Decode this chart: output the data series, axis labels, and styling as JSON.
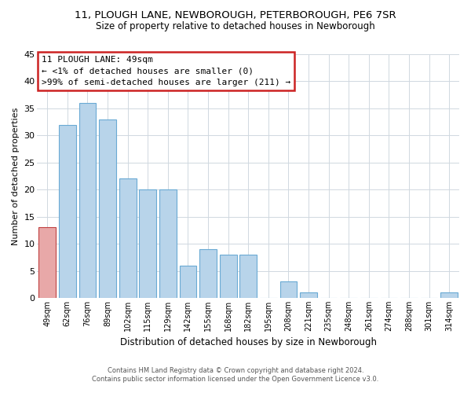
{
  "title": "11, PLOUGH LANE, NEWBOROUGH, PETERBOROUGH, PE6 7SR",
  "subtitle": "Size of property relative to detached houses in Newborough",
  "xlabel": "Distribution of detached houses by size in Newborough",
  "ylabel": "Number of detached properties",
  "bar_color": "#b8d4ea",
  "bar_edge_color": "#6aaad4",
  "categories": [
    "49sqm",
    "62sqm",
    "76sqm",
    "89sqm",
    "102sqm",
    "115sqm",
    "129sqm",
    "142sqm",
    "155sqm",
    "168sqm",
    "182sqm",
    "195sqm",
    "208sqm",
    "221sqm",
    "235sqm",
    "248sqm",
    "261sqm",
    "274sqm",
    "288sqm",
    "301sqm",
    "314sqm"
  ],
  "values": [
    13,
    32,
    36,
    33,
    22,
    20,
    20,
    6,
    9,
    8,
    8,
    0,
    3,
    1,
    0,
    0,
    0,
    0,
    0,
    0,
    1
  ],
  "ylim": [
    0,
    45
  ],
  "yticks": [
    0,
    5,
    10,
    15,
    20,
    25,
    30,
    35,
    40,
    45
  ],
  "highlight_bar_index": 0,
  "highlight_bar_color": "#e8a8a8",
  "highlight_bar_edge_color": "#c04040",
  "annotation_title": "11 PLOUGH LANE: 49sqm",
  "annotation_line1": "← <1% of detached houses are smaller (0)",
  "annotation_line2": ">99% of semi-detached houses are larger (211) →",
  "annotation_box_color": "#ffffff",
  "annotation_border_color": "#cc2222",
  "footer_line1": "Contains HM Land Registry data © Crown copyright and database right 2024.",
  "footer_line2": "Contains public sector information licensed under the Open Government Licence v3.0.",
  "background_color": "#ffffff",
  "grid_color": "#d0d8e0"
}
